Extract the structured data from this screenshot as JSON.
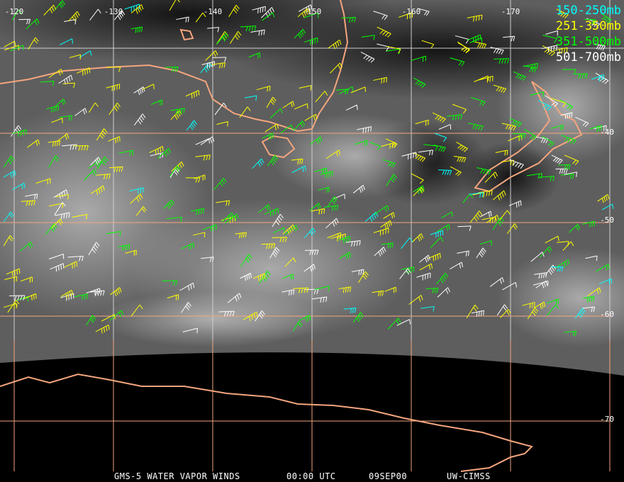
{
  "map": {
    "longitude_labels": [
      "-120",
      "-130",
      "-140",
      "-150",
      "-160",
      "-170"
    ],
    "latitude_labels": [
      "-40",
      "-50",
      "-60",
      "-70"
    ],
    "coastline_color": "#f4a57e",
    "grid_color": "#f4a57e"
  },
  "legend": [
    {
      "label": "150-250mb",
      "color": "#00ffff"
    },
    {
      "label": "251-350mb",
      "color": "#ffff00"
    },
    {
      "label": "351-500mb",
      "color": "#00ff00"
    },
    {
      "label": "501-700mb",
      "color": "#ffffff"
    }
  ],
  "caption": {
    "product": "GMS-5 WATER VAPOR WINDS",
    "time": "00:00 UTC",
    "date": "09SEP00",
    "source": "UW-CIMSS"
  }
}
